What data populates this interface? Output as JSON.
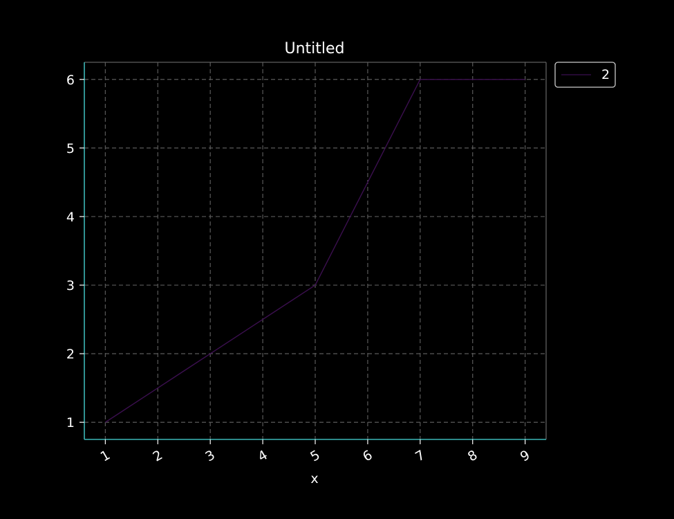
{
  "chart_data": {
    "type": "line",
    "title": "Untitled",
    "xlabel": "x",
    "ylabel": "",
    "x": [
      1,
      2,
      3,
      4,
      5,
      6,
      7,
      8,
      9
    ],
    "series": [
      {
        "name": "2",
        "values": [
          1,
          1.5,
          2,
          2.5,
          3,
          4.5,
          6,
          6,
          6
        ],
        "color": "#3b0f4f"
      }
    ],
    "xlim": [
      0.6,
      9.4
    ],
    "ylim": [
      0.75,
      6.25
    ],
    "xticks": [
      1,
      2,
      3,
      4,
      5,
      6,
      7,
      8,
      9
    ],
    "yticks": [
      1,
      2,
      3,
      4,
      5,
      6
    ],
    "grid": true,
    "legend_position": "outside-top-right",
    "colors": {
      "background": "#000000",
      "axis_left_bottom": "#3cb8b8",
      "axis_top_right": "#606060",
      "grid": "#5a5a5a",
      "text": "#ffffff"
    }
  }
}
